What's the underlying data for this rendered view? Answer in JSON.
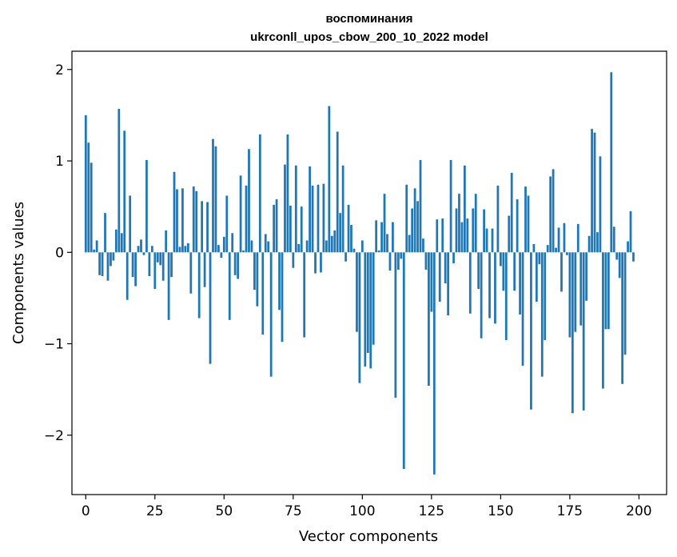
{
  "chart_data": {
    "type": "bar",
    "title": "воспоминания",
    "subtitle": "ukrconll_upos_cbow_200_10_2022 model",
    "xlabel": "Vector components",
    "ylabel": "Components values",
    "xlim": [
      -5,
      210
    ],
    "ylim": [
      -2.65,
      2.2
    ],
    "x_ticks": [
      0,
      25,
      50,
      75,
      100,
      125,
      150,
      175,
      200
    ],
    "x_tick_labels": [
      "0",
      "25",
      "50",
      "75",
      "100",
      "125",
      "150",
      "175",
      "200"
    ],
    "y_ticks": [
      -2,
      -1,
      0,
      1,
      2
    ],
    "y_tick_labels": [
      "−2",
      "−1",
      "0",
      "1",
      "2"
    ],
    "bar_color": "#1f77b4",
    "grid": false,
    "values": [
      1.5,
      1.2,
      0.98,
      0.03,
      0.13,
      -0.25,
      -0.26,
      0.43,
      -0.31,
      -0.15,
      -0.09,
      0.25,
      1.57,
      0.21,
      1.33,
      -0.52,
      0.62,
      -0.27,
      -0.37,
      0.07,
      0.14,
      -0.03,
      1.01,
      -0.26,
      0.07,
      -0.4,
      -0.11,
      -0.14,
      -0.31,
      0.24,
      -0.74,
      -0.27,
      0.88,
      0.69,
      0.06,
      0.7,
      0.07,
      0.1,
      -0.45,
      0.72,
      0.67,
      -0.72,
      0.56,
      -0.38,
      0.55,
      -1.22,
      1.24,
      1.16,
      0.08,
      -0.06,
      0.17,
      0.62,
      -0.74,
      0.21,
      -0.25,
      -0.29,
      0.84,
      0.02,
      0.73,
      1.13,
      0.13,
      -0.41,
      -0.59,
      1.29,
      -0.9,
      0.2,
      0.12,
      -1.36,
      0.52,
      0.58,
      -0.63,
      -0.98,
      0.96,
      1.29,
      0.51,
      -0.17,
      0.95,
      0.09,
      0.5,
      -0.93,
      0.13,
      0.94,
      0.73,
      -0.23,
      0.74,
      -0.22,
      0.75,
      0.13,
      1.6,
      0.18,
      0.24,
      1.32,
      0.43,
      0.95,
      -0.1,
      0.52,
      0.3,
      0.04,
      -0.87,
      -1.43,
      0.13,
      -1.25,
      -1.1,
      -1.27,
      -1.01,
      0.35,
      0.02,
      0.33,
      0.64,
      0.2,
      -0.2,
      0.33,
      -1.59,
      -0.19,
      -0.07,
      -2.37,
      0.74,
      0.19,
      0.48,
      0.7,
      0.56,
      1.01,
      0.15,
      -0.19,
      -1.46,
      -0.65,
      -2.43,
      0.36,
      -0.54,
      0.37,
      -0.34,
      -0.69,
      1.01,
      -0.12,
      0.48,
      0.64,
      0.33,
      0.95,
      0.37,
      -0.67,
      0.48,
      0.64,
      -0.4,
      -0.94,
      0.47,
      0.26,
      -0.72,
      0.26,
      -0.78,
      0.73,
      -0.15,
      -0.42,
      -0.96,
      0.4,
      0.87,
      -0.42,
      0.58,
      -0.68,
      -1.24,
      0.72,
      0.62,
      -1.72,
      0.09,
      -0.54,
      -0.13,
      -1.36,
      -0.96,
      0.08,
      0.83,
      0.91,
      0.05,
      0.27,
      -0.43,
      0.32,
      -0.03,
      -0.93,
      -1.76,
      -0.87,
      0.31,
      -0.8,
      -1.73,
      -0.53,
      0.18,
      1.35,
      1.31,
      0.22,
      1.05,
      -1.49,
      -0.84,
      -0.84,
      1.97,
      0.28,
      -0.08,
      -0.28,
      -1.44,
      -1.12,
      0.12,
      0.45,
      -0.1
    ]
  }
}
